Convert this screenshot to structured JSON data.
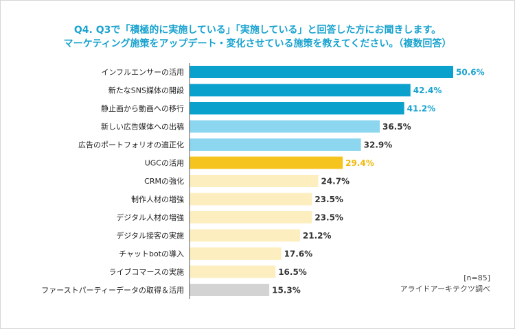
{
  "chart_data": {
    "type": "bar",
    "orientation": "horizontal",
    "title_line1": "Q4. Q3で「積極的に実施している」「実施している」と回答した方にお聞きします。",
    "title_line2": "マーケティング施策をアップデート・変化させている施策を教えてください。（複数回答）",
    "categories": [
      "インフルエンサーの活用",
      "新たなSNS媒体の開設",
      "静止画から動画への移行",
      "新しい広告媒体への出稿",
      "広告のポートフォリオの適正化",
      "UGCの活用",
      "CRMの強化",
      "制作人材の増強",
      "デジタル人材の増強",
      "デジタル接客の実施",
      "チャットbotの導入",
      "ライブコマースの実施",
      "ファーストパーティーデータの取得＆活用"
    ],
    "values": [
      50.6,
      42.4,
      41.2,
      36.5,
      32.9,
      29.4,
      24.7,
      23.5,
      23.5,
      21.2,
      17.6,
      16.5,
      15.3
    ],
    "value_labels": [
      "50.6%",
      "42.4%",
      "41.2%",
      "36.5%",
      "32.9%",
      "29.4%",
      "24.7%",
      "23.5%",
      "23.5%",
      "21.2%",
      "17.6%",
      "16.5%",
      "15.3%"
    ],
    "bar_colors": [
      "#0aa2cc",
      "#0aa2cc",
      "#0aa2cc",
      "#8dd6ef",
      "#8dd6ef",
      "#f5c41f",
      "#fdeebf",
      "#fdeebf",
      "#fdeebf",
      "#fdeebf",
      "#fdeebf",
      "#fdeebf",
      "#d3d3d3"
    ],
    "label_colors": [
      "#1aa3cf",
      "#1aa3cf",
      "#1aa3cf",
      "#333333",
      "#333333",
      "#f0b90b",
      "#333333",
      "#333333",
      "#333333",
      "#333333",
      "#333333",
      "#333333",
      "#333333"
    ],
    "xlim": [
      0,
      50.6
    ],
    "sample_note": "[n=85]",
    "source": "アライドアーキテクツ調べ"
  },
  "colors": {
    "title": "#1aa3cf",
    "axis_line": "#555555",
    "category_text": "#222222"
  }
}
